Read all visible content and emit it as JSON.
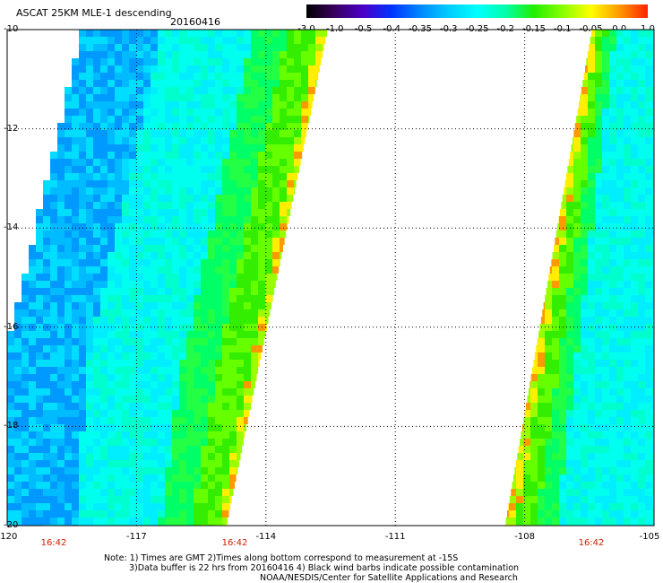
{
  "title": "ASCAT 25KM MLE-1 descending",
  "date": "20160416",
  "colorbar": {
    "labels": [
      "-3.0",
      "-1.0",
      "-0.5",
      "-0.4",
      "-0.35",
      "-0.3",
      "-0.25",
      "-0.2",
      "-0.15",
      "-0.1",
      "-0.05",
      "0.0",
      "1.0"
    ],
    "colors": [
      "#000000",
      "#3a0060",
      "#4a00c8",
      "#0033ff",
      "#0088ff",
      "#00ccff",
      "#00ffff",
      "#00ffaa",
      "#22ee00",
      "#88ff00",
      "#ffff00",
      "#ff9900",
      "#ff2200"
    ]
  },
  "lat_labels": [
    "-10",
    "-12",
    "-14",
    "-16",
    "-18",
    "-20"
  ],
  "lon_labels": [
    "-120",
    "-117",
    "-114",
    "-111",
    "-108",
    "-105"
  ],
  "times": [
    "16:42",
    "16:42",
    "16:42"
  ],
  "notes": {
    "line1": "Note: 1) Times are GMT 2)Times along bottom correspond to measurement at -15S",
    "line2": "3)Data buffer is 22 hrs from 20160416 4) Black wind barbs indicate possible contamination",
    "line3": "NOAA/NESDIS/Center for Satellite Applications and Research"
  },
  "swaths": [
    {
      "name": "west-swath",
      "color_low": "#00ccff",
      "color_mid": "#00ffdd",
      "color_edge": "#33ee00"
    },
    {
      "name": "east-swath",
      "color_low": "#00ffff",
      "color_mid": "#00ffcc",
      "color_edge": "#33ee00"
    }
  ]
}
